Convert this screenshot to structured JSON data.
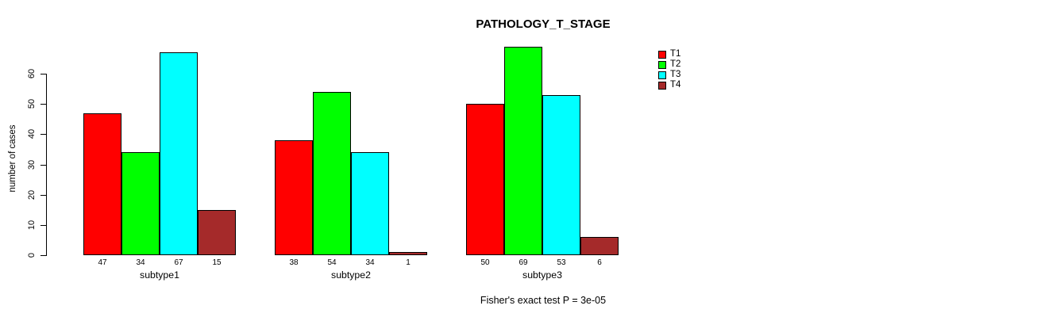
{
  "chart_data": {
    "type": "bar",
    "title": "PATHOLOGY_T_STAGE",
    "ylabel": "number of cases",
    "xlabel": "",
    "categories": [
      "subtype1",
      "subtype2",
      "subtype3"
    ],
    "series": [
      {
        "name": "T1",
        "color": "#FF0000",
        "values": [
          47,
          38,
          50
        ]
      },
      {
        "name": "T2",
        "color": "#00FF00",
        "values": [
          34,
          54,
          69
        ]
      },
      {
        "name": "T3",
        "color": "#00FFFF",
        "values": [
          67,
          34,
          53
        ]
      },
      {
        "name": "T4",
        "color": "#A52A2A",
        "values": [
          15,
          1,
          6
        ]
      }
    ],
    "yticks": [
      0,
      10,
      20,
      30,
      40,
      50,
      60
    ],
    "ylim": [
      0,
      69
    ],
    "grid": false,
    "show_values_under_bars": true,
    "legend_position": "top-right",
    "legend_entries": [
      "T1",
      "T2",
      "T3",
      "T4"
    ],
    "annotation": "Fisher's exact test P = 3e-05",
    "background_color": "#FFFFFF",
    "axis_color": "#000000"
  }
}
